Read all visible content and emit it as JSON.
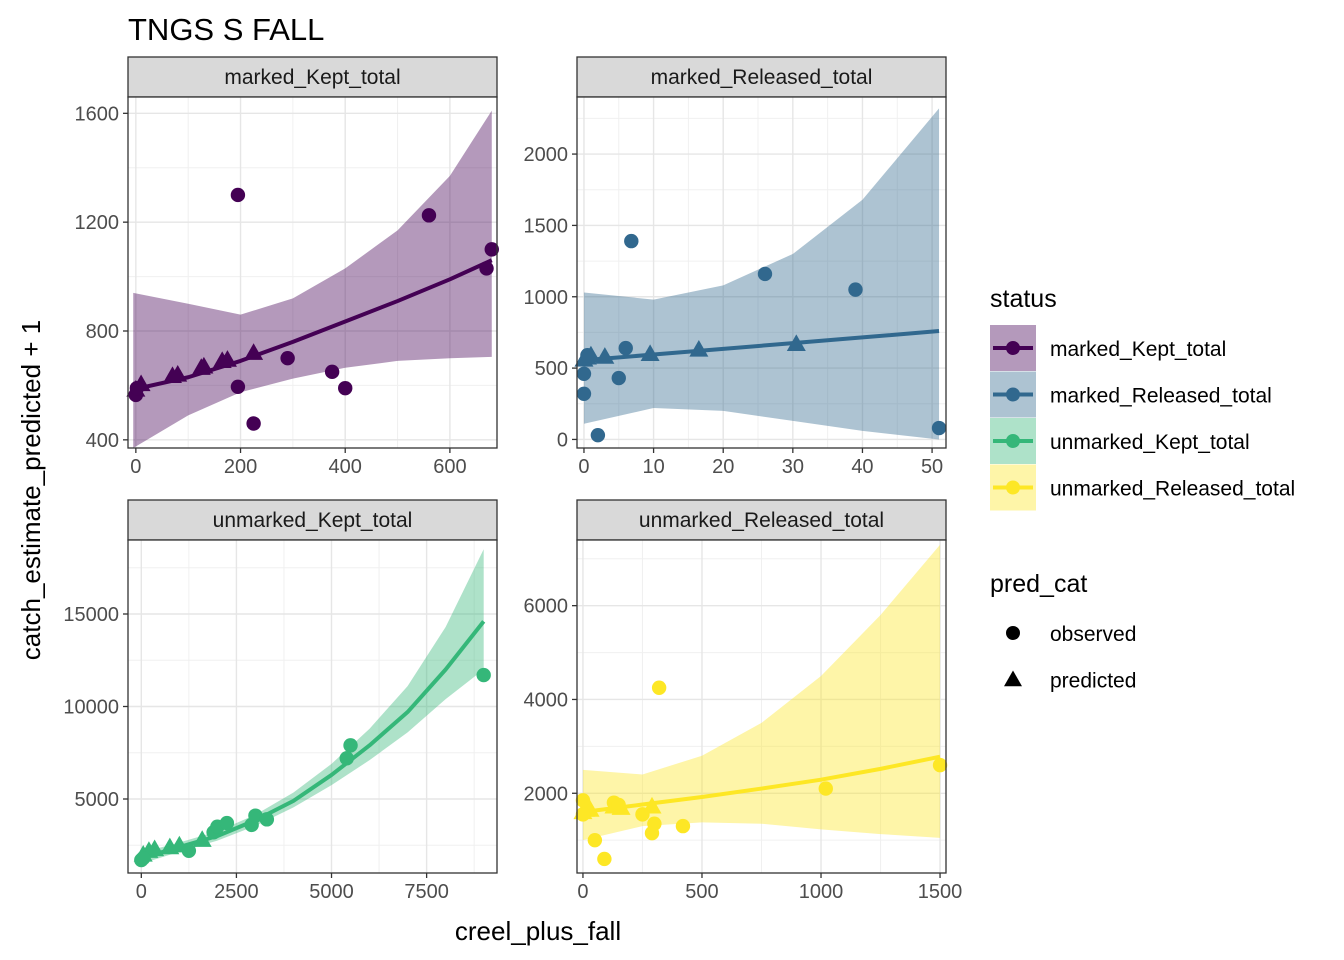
{
  "title": "TNGS S FALL",
  "xlabel": "creel_plus_fall",
  "ylabel": "catch_estimate_predicted + 1",
  "legend": {
    "status_title": "status",
    "status_items": [
      {
        "label": "marked_Kept_total",
        "color": "#440154"
      },
      {
        "label": "marked_Released_total",
        "color": "#31688E"
      },
      {
        "label": "unmarked_Kept_total",
        "color": "#35B779"
      },
      {
        "label": "unmarked_Released_total",
        "color": "#FDE725"
      }
    ],
    "shape_title": "pred_cat",
    "shape_items": [
      {
        "label": "observed",
        "shape": "circle"
      },
      {
        "label": "predicted",
        "shape": "triangle"
      }
    ]
  },
  "chart_data": [
    {
      "type": "scatter",
      "facet": "marked_Kept_total",
      "color": "#440154",
      "xlim": [
        -15,
        690
      ],
      "ylim": [
        370,
        1660
      ],
      "xticks": [
        0,
        200,
        400,
        600
      ],
      "xticklabels": [
        "0",
        "200",
        "400",
        "600"
      ],
      "yticks": [
        400,
        800,
        1200,
        1600
      ],
      "yticklabels": [
        "400",
        "800",
        "1200",
        "1600"
      ],
      "observed": [
        [
          0,
          565
        ],
        [
          2,
          590
        ],
        [
          195,
          1300
        ],
        [
          195,
          595
        ],
        [
          225,
          460
        ],
        [
          290,
          700
        ],
        [
          375,
          650
        ],
        [
          400,
          590
        ],
        [
          560,
          1225
        ],
        [
          670,
          1030
        ],
        [
          680,
          1100
        ]
      ],
      "predicted": [
        [
          0,
          585
        ],
        [
          10,
          605
        ],
        [
          70,
          635
        ],
        [
          80,
          640
        ],
        [
          125,
          665
        ],
        [
          130,
          670
        ],
        [
          165,
          690
        ],
        [
          175,
          695
        ],
        [
          225,
          720
        ]
      ],
      "fit": [
        [
          -5,
          585
        ],
        [
          100,
          630
        ],
        [
          200,
          690
        ],
        [
          300,
          760
        ],
        [
          400,
          835
        ],
        [
          500,
          910
        ],
        [
          600,
          990
        ],
        [
          680,
          1060
        ]
      ],
      "ribbon": [
        [
          -5,
          370,
          940
        ],
        [
          100,
          490,
          900
        ],
        [
          200,
          575,
          860
        ],
        [
          300,
          625,
          920
        ],
        [
          400,
          665,
          1030
        ],
        [
          500,
          690,
          1170
        ],
        [
          600,
          700,
          1370
        ],
        [
          680,
          705,
          1610
        ]
      ],
      "grid": true
    },
    {
      "type": "scatter",
      "facet": "marked_Released_total",
      "color": "#31688E",
      "xlim": [
        -1,
        52
      ],
      "ylim": [
        -60,
        2400
      ],
      "xticks": [
        0,
        10,
        20,
        30,
        40,
        50
      ],
      "xticklabels": [
        "0",
        "10",
        "20",
        "30",
        "40",
        "50"
      ],
      "yticks": [
        0,
        500,
        1000,
        1500,
        2000
      ],
      "yticklabels": [
        "0",
        "500",
        "1000",
        "1500",
        "2000"
      ],
      "observed": [
        [
          0,
          460
        ],
        [
          0,
          320
        ],
        [
          0.5,
          590
        ],
        [
          2,
          30
        ],
        [
          5,
          430
        ],
        [
          6,
          640
        ],
        [
          6.8,
          1390
        ],
        [
          26,
          1160
        ],
        [
          39,
          1050
        ],
        [
          51,
          80
        ]
      ],
      "predicted": [
        [
          0,
          560
        ],
        [
          0.5,
          575
        ],
        [
          1,
          590
        ],
        [
          3,
          580
        ],
        [
          9.5,
          600
        ],
        [
          16.5,
          630
        ],
        [
          30.5,
          670
        ]
      ],
      "fit": [
        [
          0,
          555
        ],
        [
          10,
          595
        ],
        [
          20,
          635
        ],
        [
          30,
          675
        ],
        [
          40,
          715
        ],
        [
          51,
          760
        ]
      ],
      "ribbon": [
        [
          0,
          110,
          1030
        ],
        [
          10,
          220,
          980
        ],
        [
          20,
          200,
          1080
        ],
        [
          30,
          130,
          1300
        ],
        [
          40,
          60,
          1680
        ],
        [
          51,
          0,
          2320
        ]
      ],
      "grid": true
    },
    {
      "type": "scatter",
      "facet": "unmarked_Kept_total",
      "color": "#35B779",
      "xlim": [
        -350,
        9350
      ],
      "ylim": [
        1000,
        19000
      ],
      "xticks": [
        0,
        2500,
        5000,
        7500
      ],
      "xticklabels": [
        "0",
        "2500",
        "5000",
        "7500"
      ],
      "yticks": [
        5000,
        10000,
        15000
      ],
      "yticklabels": [
        "5000",
        "10000",
        "15000"
      ],
      "observed": [
        [
          0,
          1700
        ],
        [
          50,
          1800
        ],
        [
          1250,
          2200
        ],
        [
          1900,
          3200
        ],
        [
          2000,
          3500
        ],
        [
          2250,
          3700
        ],
        [
          2900,
          3600
        ],
        [
          3000,
          4100
        ],
        [
          3300,
          3900
        ],
        [
          5400,
          7200
        ],
        [
          5500,
          7900
        ],
        [
          9000,
          11700
        ]
      ],
      "predicted": [
        [
          50,
          2000
        ],
        [
          200,
          2200
        ],
        [
          350,
          2300
        ],
        [
          750,
          2400
        ],
        [
          1000,
          2500
        ],
        [
          1600,
          2800
        ]
      ],
      "fit": [
        [
          0,
          1800
        ],
        [
          1000,
          2400
        ],
        [
          2000,
          3000
        ],
        [
          3000,
          3850
        ],
        [
          4000,
          4900
        ],
        [
          5000,
          6300
        ],
        [
          6000,
          7900
        ],
        [
          7000,
          9700
        ],
        [
          8000,
          12000
        ],
        [
          9000,
          14600
        ]
      ],
      "ribbon": [
        [
          0,
          1500,
          2100
        ],
        [
          1000,
          2150,
          2650
        ],
        [
          2000,
          2750,
          3250
        ],
        [
          3000,
          3550,
          4150
        ],
        [
          4000,
          4550,
          5350
        ],
        [
          5000,
          5750,
          6900
        ],
        [
          6000,
          7100,
          8800
        ],
        [
          7000,
          8600,
          11100
        ],
        [
          8000,
          10400,
          14300
        ],
        [
          9000,
          12000,
          18500
        ]
      ],
      "grid": true
    },
    {
      "type": "scatter",
      "facet": "unmarked_Released_total",
      "color": "#FDE725",
      "xlim": [
        -25,
        1525
      ],
      "ylim": [
        300,
        7400
      ],
      "xticks": [
        0,
        500,
        1000,
        1500
      ],
      "xticklabels": [
        "0",
        "500",
        "1000",
        "1500"
      ],
      "yticks": [
        2000,
        4000,
        6000
      ],
      "yticklabels": [
        "2000",
        "4000",
        "6000"
      ],
      "observed": [
        [
          0,
          1850
        ],
        [
          0,
          1550
        ],
        [
          50,
          1000
        ],
        [
          90,
          600
        ],
        [
          130,
          1800
        ],
        [
          150,
          1750
        ],
        [
          250,
          1550
        ],
        [
          290,
          1150
        ],
        [
          300,
          1350
        ],
        [
          320,
          4250
        ],
        [
          420,
          1300
        ],
        [
          1020,
          2100
        ],
        [
          1500,
          2600
        ]
      ],
      "predicted": [
        [
          0,
          1600
        ],
        [
          10,
          1650
        ],
        [
          30,
          1650
        ],
        [
          130,
          1720
        ],
        [
          160,
          1690
        ],
        [
          290,
          1720
        ]
      ],
      "fit": [
        [
          0,
          1600
        ],
        [
          250,
          1760
        ],
        [
          500,
          1920
        ],
        [
          750,
          2100
        ],
        [
          1000,
          2290
        ],
        [
          1250,
          2520
        ],
        [
          1500,
          2780
        ]
      ],
      "ribbon": [
        [
          0,
          1000,
          2500
        ],
        [
          250,
          1300,
          2400
        ],
        [
          500,
          1380,
          2800
        ],
        [
          750,
          1350,
          3500
        ],
        [
          1000,
          1230,
          4500
        ],
        [
          1250,
          1130,
          5800
        ],
        [
          1500,
          1050,
          7300
        ]
      ],
      "grid": true
    }
  ]
}
